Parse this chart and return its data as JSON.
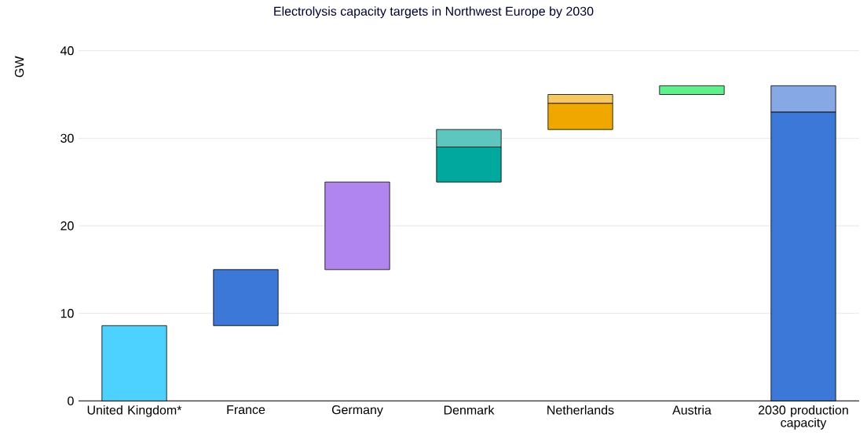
{
  "chart_data": {
    "type": "bar",
    "title": "Electrolysis capacity targets in Northwest Europe by 2030",
    "ylabel": "GW",
    "categories": [
      "United Kingdom*",
      "France",
      "Germany",
      "Denmark",
      "Netherlands",
      "Austria",
      "2030 production capacity"
    ],
    "series": [
      {
        "base": [
          0,
          8.6,
          15,
          25,
          31,
          35,
          0
        ],
        "values": [
          8.6,
          6.4,
          10,
          4,
          3,
          1,
          33
        ],
        "colors": [
          "#4dd2ff",
          "#3c78d8",
          "#b085f0",
          "#00a89d",
          "#f0a800",
          "#5ef08a",
          "#3c78d8"
        ]
      },
      {
        "base": [
          null,
          null,
          null,
          29,
          34,
          null,
          33
        ],
        "values": [
          null,
          null,
          null,
          2,
          1,
          null,
          3
        ],
        "colors": [
          null,
          null,
          null,
          "#5cc6bf",
          "#f5c860",
          null,
          "#86a9e6"
        ]
      }
    ],
    "ylim": [
      0,
      40
    ],
    "yticks": [
      0,
      10,
      20,
      30,
      40
    ],
    "grid": "y"
  }
}
